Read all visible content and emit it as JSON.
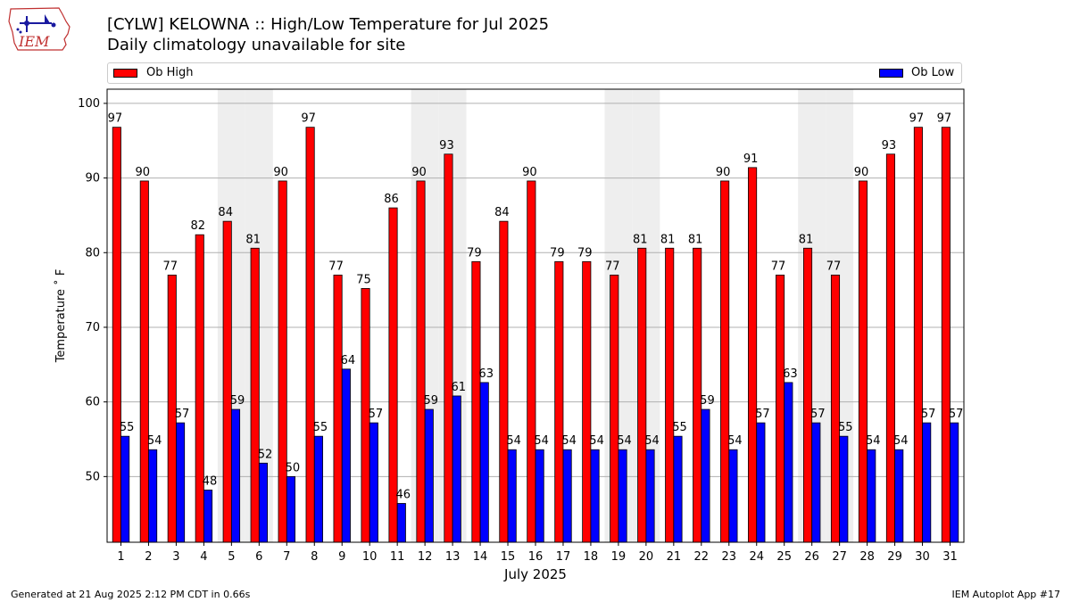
{
  "header": {
    "logo_text": "IEM",
    "title_line1": "[CYLW] KELOWNA :: High/Low Temperature for Jul 2025",
    "title_line2": "Daily climatology unavailable for site"
  },
  "footer": {
    "generated": "Generated at 21 Aug 2025 2:12 PM CDT in 0.66s",
    "app": "IEM Autoplot App #17"
  },
  "colors": {
    "high": "#ff0000",
    "low": "#0000ff",
    "weekend_band": "#eeeeee",
    "grid": "#b0b0b0"
  },
  "chart_data": {
    "type": "bar",
    "xlabel": "July 2025",
    "ylabel": "Temperature ˚ F",
    "ylim": [
      41.2,
      101.9
    ],
    "yticks": [
      50,
      60,
      70,
      80,
      90,
      100
    ],
    "grid": "horizontal",
    "legend_placement": "top",
    "categories": [
      "1",
      "2",
      "3",
      "4",
      "5",
      "6",
      "7",
      "8",
      "9",
      "10",
      "11",
      "12",
      "13",
      "14",
      "15",
      "16",
      "17",
      "18",
      "19",
      "20",
      "21",
      "22",
      "23",
      "24",
      "25",
      "26",
      "27",
      "28",
      "29",
      "30",
      "31"
    ],
    "shaded_days": [
      "5",
      "6",
      "12",
      "13",
      "19",
      "20",
      "26",
      "27"
    ],
    "series": [
      {
        "name": "Ob High",
        "color": "#ff0000",
        "values": [
          97,
          90,
          77,
          82,
          84,
          81,
          90,
          97,
          77,
          75,
          86,
          90,
          93,
          79,
          84,
          90,
          79,
          79,
          77,
          81,
          81,
          81,
          90,
          91,
          77,
          81,
          77,
          90,
          93,
          97,
          97
        ],
        "plotted": [
          96.8,
          89.6,
          77.0,
          82.4,
          84.2,
          80.6,
          89.6,
          96.8,
          77.0,
          75.2,
          86.0,
          89.6,
          93.2,
          78.8,
          84.2,
          89.6,
          78.8,
          78.8,
          77.0,
          80.6,
          80.6,
          80.6,
          89.6,
          91.4,
          77.0,
          80.6,
          77.0,
          89.6,
          93.2,
          96.8,
          96.8
        ]
      },
      {
        "name": "Ob Low",
        "color": "#0000ff",
        "values": [
          55,
          54,
          57,
          48,
          59,
          52,
          50,
          55,
          64,
          57,
          46,
          59,
          61,
          63,
          54,
          54,
          54,
          54,
          54,
          54,
          55,
          59,
          54,
          57,
          63,
          57,
          55,
          54,
          54,
          57,
          57
        ],
        "plotted": [
          55.4,
          53.6,
          57.2,
          48.2,
          59.0,
          51.8,
          50.0,
          55.4,
          64.4,
          57.2,
          46.4,
          59.0,
          60.8,
          62.6,
          53.6,
          53.6,
          53.6,
          53.6,
          53.6,
          53.6,
          55.4,
          59.0,
          53.6,
          57.2,
          62.6,
          57.2,
          55.4,
          53.6,
          53.6,
          57.2,
          57.2
        ]
      }
    ]
  }
}
